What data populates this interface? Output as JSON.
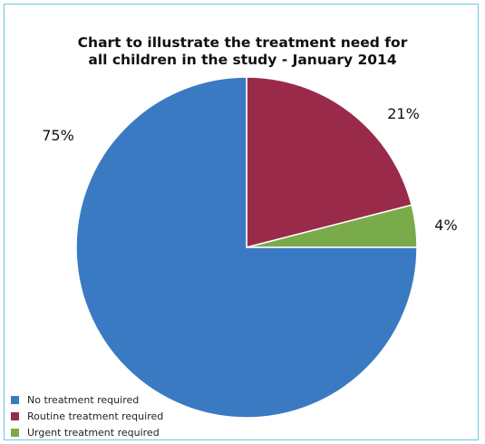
{
  "chart_data": {
    "type": "pie",
    "title": [
      "Chart to illustrate the treatment need for",
      "all children in the study - January 2014"
    ],
    "slices": [
      {
        "label": "Routine treatment required",
        "value": 21,
        "value_label": "21%",
        "color": "#9a2a4a"
      },
      {
        "label": "Urgent treatment required",
        "value": 4,
        "value_label": "4%",
        "color": "#7aab4a"
      },
      {
        "label": "No treatment required",
        "value": 75,
        "value_label": "75%",
        "color": "#3a7ac3"
      }
    ],
    "legend_order": [
      2,
      0,
      1
    ],
    "legend_position": "bottom-left",
    "start_angle": "12 o'clock, clockwise"
  },
  "frame_color": "#6cc7e6"
}
